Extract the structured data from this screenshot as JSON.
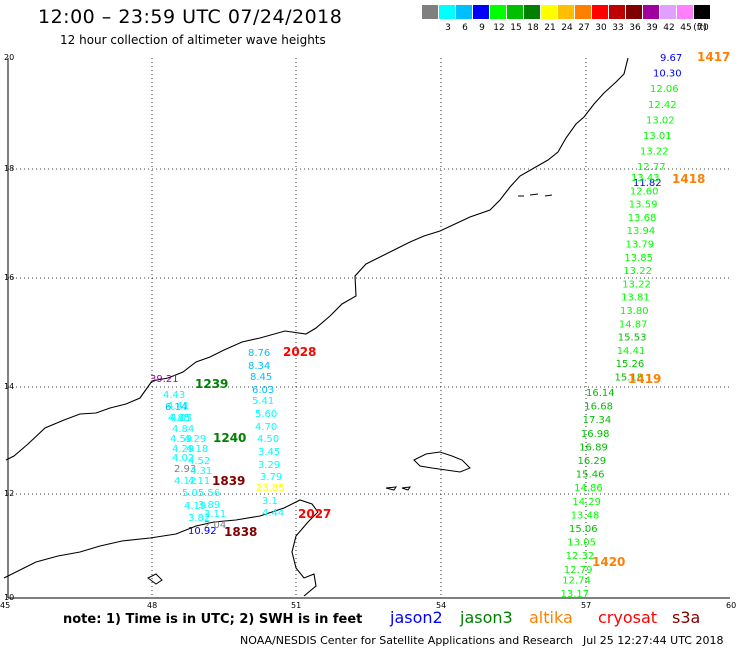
{
  "header": {
    "title": "12:00 – 23:59 UTC 07/24/2018",
    "subtitle": "12 hour collection of altimeter wave heights"
  },
  "legend": {
    "colors": [
      "#7f7f7f",
      "#00ffff",
      "#00bfff",
      "#0000ff",
      "#00ff00",
      "#00bf00",
      "#008000",
      "#ffff00",
      "#ffbf00",
      "#ff8000",
      "#ff0000",
      "#bf0000",
      "#800000",
      "#a000a0",
      "#e0a0ff",
      "#ff80ff",
      "#000000"
    ],
    "labels": [
      "3",
      "6",
      "9",
      "12",
      "15",
      "18",
      "21",
      "24",
      "27",
      "30",
      "33",
      "36",
      "39",
      "42",
      "45",
      "70",
      "(ft)"
    ]
  },
  "axes": {
    "x_ticks": [
      "45",
      "48",
      "51",
      "54",
      "57",
      "60"
    ],
    "y_ticks": [
      "20",
      "18",
      "16",
      "14",
      "12",
      "10"
    ]
  },
  "tracks": [
    {
      "time": "1417",
      "values": [
        "9.67",
        "10.30",
        "12.06",
        "12.42",
        "13.02",
        "13.01",
        "13.22",
        "12.77",
        "11.82"
      ]
    },
    {
      "time": "1418",
      "values": [
        "13.43",
        "12.60",
        "13.59",
        "13.68",
        "13.94",
        "13.79",
        "13.85",
        "13.22",
        "13.22",
        "13.81",
        "13.80",
        "14.87",
        "15.53",
        "14.41",
        "15.26",
        "15.18"
      ]
    },
    {
      "time": "1419",
      "values": [
        "16.14",
        "16.68",
        "17.34",
        "16.98",
        "16.89",
        "16.29",
        "15.46",
        "14.86",
        "14.29",
        "13.48",
        "15.06",
        "13.05",
        "12.32",
        "12.79",
        "12.74",
        "13.17"
      ]
    },
    {
      "time": "1420",
      "values": []
    },
    {
      "time": "2028",
      "values": [
        "8.76",
        "8.34",
        "8.45",
        "6.03",
        "5.41",
        "5.60",
        "4.70",
        "4.50",
        "3.45",
        "3.29",
        "3.79",
        "23.85",
        "3.1",
        "4.44"
      ]
    },
    {
      "time": "2027",
      "values": []
    },
    {
      "time": "1239",
      "values": [
        "39.21",
        "4.43",
        "4.41",
        "6.14",
        "4.85",
        "4.85",
        "4.84",
        "4.59",
        "4.29",
        "4.29",
        "4.18",
        "4.02",
        "4.52",
        "2.93",
        "4.31",
        "4.12",
        "4.11",
        "5.05",
        "5.56",
        "4.19",
        "3.89",
        "3.82",
        "3.11",
        "2.04",
        "10.92"
      ]
    },
    {
      "time": "1240",
      "values": []
    },
    {
      "time": "1839",
      "values": []
    },
    {
      "time": "1838",
      "values": []
    }
  ],
  "footer": {
    "note": "note: 1) Time is in UTC; 2) SWH is in feet",
    "sats": [
      "jason2",
      "jason3",
      "altika",
      "cryosat",
      "s3a"
    ],
    "sat_colors": [
      "#0000ff",
      "#008000",
      "#ff8000",
      "#ff0000",
      "#800000"
    ],
    "credit": "NOAA/NESDIS Center for Satellite Applications and Research",
    "stamp": "Jul 25 12:27:44 UTC 2018"
  }
}
